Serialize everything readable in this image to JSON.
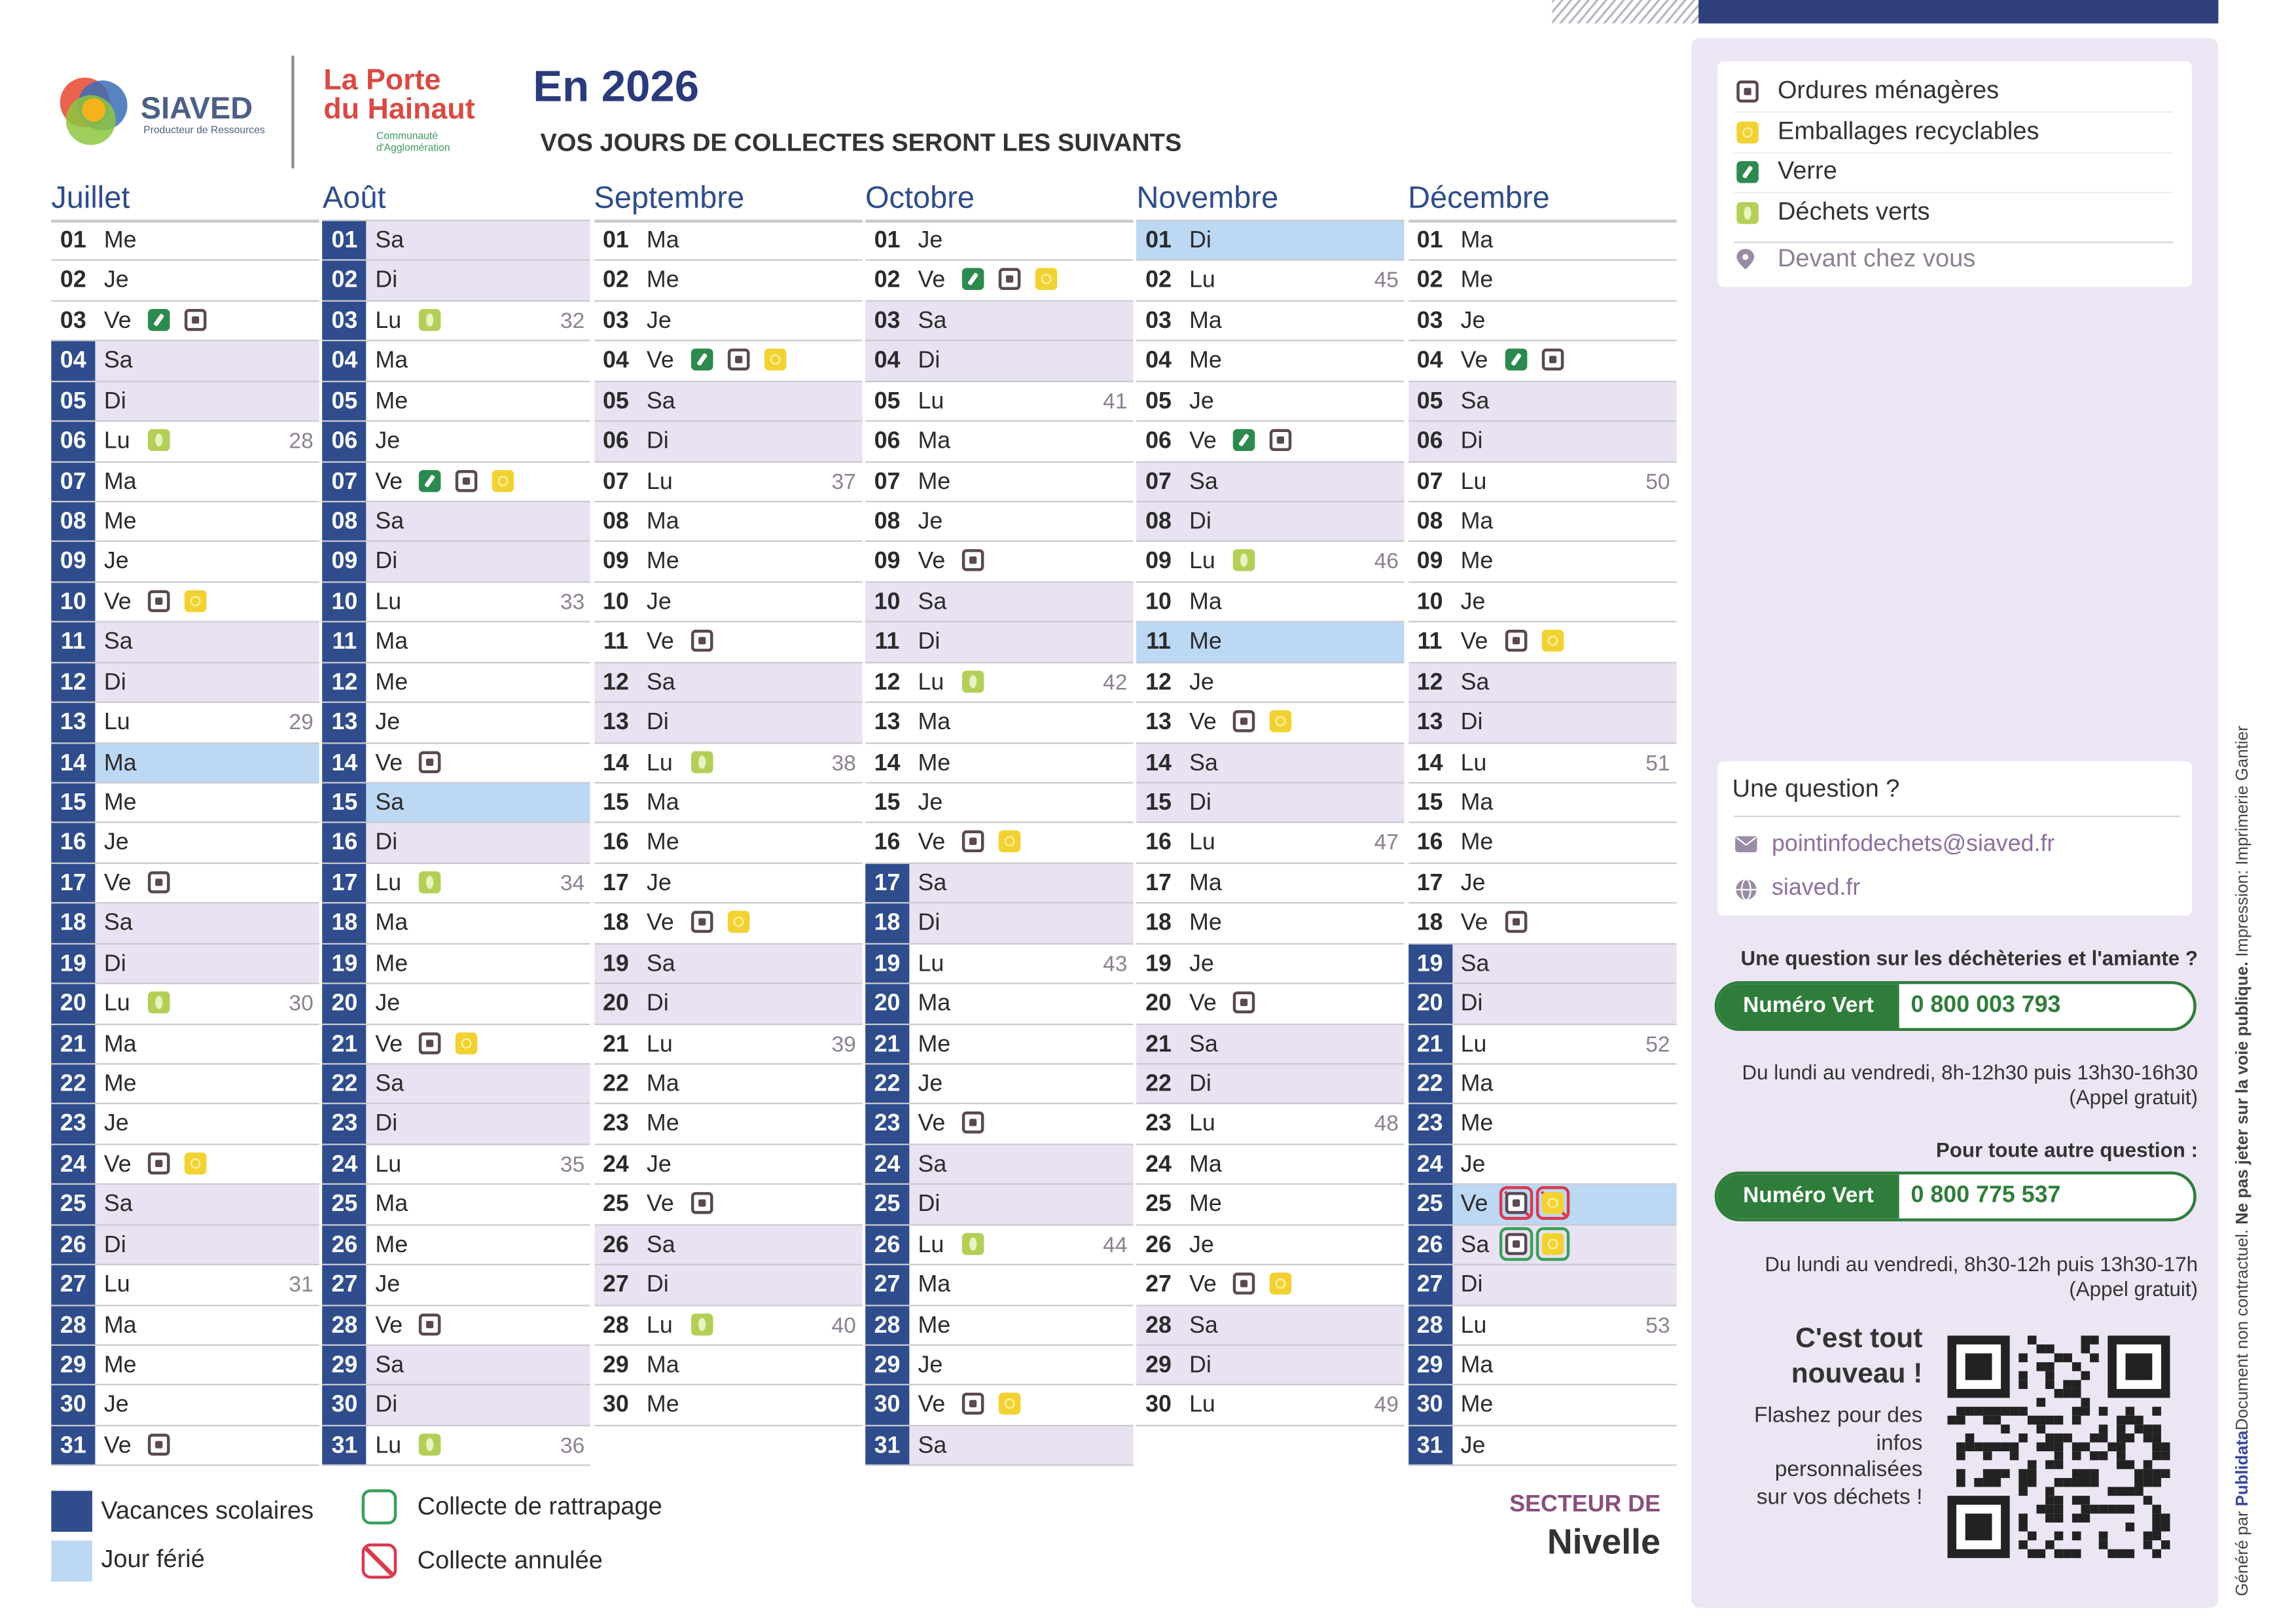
{
  "header": {
    "logo_siaved": "SIAVED",
    "logo_siaved_tagline": "Producteur de Ressources",
    "logo_porte_1": "La Porte",
    "logo_porte_2": "du Hainaut",
    "logo_porte_tagline": "Communauté d'Agglomération",
    "year_title": "En 2026",
    "subtitle": "VOS JOURS DE COLLECTES SERONT LES SUIVANTS"
  },
  "months": [
    {
      "name": "Juillet",
      "days": [
        {
          "d": "01",
          "w": "Me"
        },
        {
          "d": "02",
          "w": "Je"
        },
        {
          "d": "03",
          "w": "Ve",
          "i": [
            "v",
            "o"
          ]
        },
        {
          "d": "04",
          "w": "Sa",
          "s": "w",
          "v": true
        },
        {
          "d": "05",
          "w": "Di",
          "s": "w",
          "v": true
        },
        {
          "d": "06",
          "w": "Lu",
          "i": [
            "g"
          ],
          "n": 28,
          "v": true
        },
        {
          "d": "07",
          "w": "Ma",
          "v": true
        },
        {
          "d": "08",
          "w": "Me",
          "v": true
        },
        {
          "d": "09",
          "w": "Je",
          "v": true
        },
        {
          "d": "10",
          "w": "Ve",
          "i": [
            "o",
            "e"
          ],
          "v": true
        },
        {
          "d": "11",
          "w": "Sa",
          "s": "w",
          "v": true
        },
        {
          "d": "12",
          "w": "Di",
          "s": "w",
          "v": true
        },
        {
          "d": "13",
          "w": "Lu",
          "n": 29,
          "v": true
        },
        {
          "d": "14",
          "w": "Ma",
          "s": "h",
          "v": true
        },
        {
          "d": "15",
          "w": "Me",
          "v": true
        },
        {
          "d": "16",
          "w": "Je",
          "v": true
        },
        {
          "d": "17",
          "w": "Ve",
          "i": [
            "o"
          ],
          "v": true
        },
        {
          "d": "18",
          "w": "Sa",
          "s": "w",
          "v": true
        },
        {
          "d": "19",
          "w": "Di",
          "s": "w",
          "v": true
        },
        {
          "d": "20",
          "w": "Lu",
          "i": [
            "g"
          ],
          "n": 30,
          "v": true
        },
        {
          "d": "21",
          "w": "Ma",
          "v": true
        },
        {
          "d": "22",
          "w": "Me",
          "v": true
        },
        {
          "d": "23",
          "w": "Je",
          "v": true
        },
        {
          "d": "24",
          "w": "Ve",
          "i": [
            "o",
            "e"
          ],
          "v": true
        },
        {
          "d": "25",
          "w": "Sa",
          "s": "w",
          "v": true
        },
        {
          "d": "26",
          "w": "Di",
          "s": "w",
          "v": true
        },
        {
          "d": "27",
          "w": "Lu",
          "n": 31,
          "v": true
        },
        {
          "d": "28",
          "w": "Ma",
          "v": true
        },
        {
          "d": "29",
          "w": "Me",
          "v": true
        },
        {
          "d": "30",
          "w": "Je",
          "v": true
        },
        {
          "d": "31",
          "w": "Ve",
          "i": [
            "o"
          ],
          "v": true
        }
      ]
    },
    {
      "name": "Août",
      "days": [
        {
          "d": "01",
          "w": "Sa",
          "s": "w",
          "v": true
        },
        {
          "d": "02",
          "w": "Di",
          "s": "w",
          "v": true
        },
        {
          "d": "03",
          "w": "Lu",
          "i": [
            "g"
          ],
          "n": 32,
          "v": true
        },
        {
          "d": "04",
          "w": "Ma",
          "v": true
        },
        {
          "d": "05",
          "w": "Me",
          "v": true
        },
        {
          "d": "06",
          "w": "Je",
          "v": true
        },
        {
          "d": "07",
          "w": "Ve",
          "i": [
            "v",
            "o",
            "e"
          ],
          "v": true
        },
        {
          "d": "08",
          "w": "Sa",
          "s": "w",
          "v": true
        },
        {
          "d": "09",
          "w": "Di",
          "s": "w",
          "v": true
        },
        {
          "d": "10",
          "w": "Lu",
          "n": 33,
          "v": true
        },
        {
          "d": "11",
          "w": "Ma",
          "v": true
        },
        {
          "d": "12",
          "w": "Me",
          "v": true
        },
        {
          "d": "13",
          "w": "Je",
          "v": true
        },
        {
          "d": "14",
          "w": "Ve",
          "i": [
            "o"
          ],
          "v": true
        },
        {
          "d": "15",
          "w": "Sa",
          "s": "h",
          "v": true
        },
        {
          "d": "16",
          "w": "Di",
          "s": "w",
          "v": true
        },
        {
          "d": "17",
          "w": "Lu",
          "i": [
            "g"
          ],
          "n": 34,
          "v": true
        },
        {
          "d": "18",
          "w": "Ma",
          "v": true
        },
        {
          "d": "19",
          "w": "Me",
          "v": true
        },
        {
          "d": "20",
          "w": "Je",
          "v": true
        },
        {
          "d": "21",
          "w": "Ve",
          "i": [
            "o",
            "e"
          ],
          "v": true
        },
        {
          "d": "22",
          "w": "Sa",
          "s": "w",
          "v": true
        },
        {
          "d": "23",
          "w": "Di",
          "s": "w",
          "v": true
        },
        {
          "d": "24",
          "w": "Lu",
          "n": 35,
          "v": true
        },
        {
          "d": "25",
          "w": "Ma",
          "v": true
        },
        {
          "d": "26",
          "w": "Me",
          "v": true
        },
        {
          "d": "27",
          "w": "Je",
          "v": true
        },
        {
          "d": "28",
          "w": "Ve",
          "i": [
            "o"
          ],
          "v": true
        },
        {
          "d": "29",
          "w": "Sa",
          "s": "w",
          "v": true
        },
        {
          "d": "30",
          "w": "Di",
          "s": "w",
          "v": true
        },
        {
          "d": "31",
          "w": "Lu",
          "i": [
            "g"
          ],
          "n": 36,
          "v": true
        }
      ]
    },
    {
      "name": "Septembre",
      "days": [
        {
          "d": "01",
          "w": "Ma"
        },
        {
          "d": "02",
          "w": "Me"
        },
        {
          "d": "03",
          "w": "Je"
        },
        {
          "d": "04",
          "w": "Ve",
          "i": [
            "v",
            "o",
            "e"
          ]
        },
        {
          "d": "05",
          "w": "Sa",
          "s": "w"
        },
        {
          "d": "06",
          "w": "Di",
          "s": "w"
        },
        {
          "d": "07",
          "w": "Lu",
          "n": 37
        },
        {
          "d": "08",
          "w": "Ma"
        },
        {
          "d": "09",
          "w": "Me"
        },
        {
          "d": "10",
          "w": "Je"
        },
        {
          "d": "11",
          "w": "Ve",
          "i": [
            "o"
          ]
        },
        {
          "d": "12",
          "w": "Sa",
          "s": "w"
        },
        {
          "d": "13",
          "w": "Di",
          "s": "w"
        },
        {
          "d": "14",
          "w": "Lu",
          "i": [
            "g"
          ],
          "n": 38
        },
        {
          "d": "15",
          "w": "Ma"
        },
        {
          "d": "16",
          "w": "Me"
        },
        {
          "d": "17",
          "w": "Je"
        },
        {
          "d": "18",
          "w": "Ve",
          "i": [
            "o",
            "e"
          ]
        },
        {
          "d": "19",
          "w": "Sa",
          "s": "w"
        },
        {
          "d": "20",
          "w": "Di",
          "s": "w"
        },
        {
          "d": "21",
          "w": "Lu",
          "n": 39
        },
        {
          "d": "22",
          "w": "Ma"
        },
        {
          "d": "23",
          "w": "Me"
        },
        {
          "d": "24",
          "w": "Je"
        },
        {
          "d": "25",
          "w": "Ve",
          "i": [
            "o"
          ]
        },
        {
          "d": "26",
          "w": "Sa",
          "s": "w"
        },
        {
          "d": "27",
          "w": "Di",
          "s": "w"
        },
        {
          "d": "28",
          "w": "Lu",
          "i": [
            "g"
          ],
          "n": 40
        },
        {
          "d": "29",
          "w": "Ma"
        },
        {
          "d": "30",
          "w": "Me"
        }
      ]
    },
    {
      "name": "Octobre",
      "days": [
        {
          "d": "01",
          "w": "Je"
        },
        {
          "d": "02",
          "w": "Ve",
          "i": [
            "v",
            "o",
            "e"
          ]
        },
        {
          "d": "03",
          "w": "Sa",
          "s": "w"
        },
        {
          "d": "04",
          "w": "Di",
          "s": "w"
        },
        {
          "d": "05",
          "w": "Lu",
          "n": 41
        },
        {
          "d": "06",
          "w": "Ma"
        },
        {
          "d": "07",
          "w": "Me"
        },
        {
          "d": "08",
          "w": "Je"
        },
        {
          "d": "09",
          "w": "Ve",
          "i": [
            "o"
          ]
        },
        {
          "d": "10",
          "w": "Sa",
          "s": "w"
        },
        {
          "d": "11",
          "w": "Di",
          "s": "w"
        },
        {
          "d": "12",
          "w": "Lu",
          "i": [
            "g"
          ],
          "n": 42
        },
        {
          "d": "13",
          "w": "Ma"
        },
        {
          "d": "14",
          "w": "Me"
        },
        {
          "d": "15",
          "w": "Je"
        },
        {
          "d": "16",
          "w": "Ve",
          "i": [
            "o",
            "e"
          ]
        },
        {
          "d": "17",
          "w": "Sa",
          "s": "w",
          "v": true
        },
        {
          "d": "18",
          "w": "Di",
          "s": "w",
          "v": true
        },
        {
          "d": "19",
          "w": "Lu",
          "n": 43,
          "v": true
        },
        {
          "d": "20",
          "w": "Ma",
          "v": true
        },
        {
          "d": "21",
          "w": "Me",
          "v": true
        },
        {
          "d": "22",
          "w": "Je",
          "v": true
        },
        {
          "d": "23",
          "w": "Ve",
          "i": [
            "o"
          ],
          "v": true
        },
        {
          "d": "24",
          "w": "Sa",
          "s": "w",
          "v": true
        },
        {
          "d": "25",
          "w": "Di",
          "s": "w",
          "v": true
        },
        {
          "d": "26",
          "w": "Lu",
          "i": [
            "g"
          ],
          "n": 44,
          "v": true
        },
        {
          "d": "27",
          "w": "Ma",
          "v": true
        },
        {
          "d": "28",
          "w": "Me",
          "v": true
        },
        {
          "d": "29",
          "w": "Je",
          "v": true
        },
        {
          "d": "30",
          "w": "Ve",
          "i": [
            "o",
            "e"
          ],
          "v": true
        },
        {
          "d": "31",
          "w": "Sa",
          "s": "w",
          "v": true
        }
      ]
    },
    {
      "name": "Novembre",
      "days": [
        {
          "d": "01",
          "w": "Di",
          "s": "h"
        },
        {
          "d": "02",
          "w": "Lu",
          "n": 45
        },
        {
          "d": "03",
          "w": "Ma"
        },
        {
          "d": "04",
          "w": "Me"
        },
        {
          "d": "05",
          "w": "Je"
        },
        {
          "d": "06",
          "w": "Ve",
          "i": [
            "v",
            "o"
          ]
        },
        {
          "d": "07",
          "w": "Sa",
          "s": "w"
        },
        {
          "d": "08",
          "w": "Di",
          "s": "w"
        },
        {
          "d": "09",
          "w": "Lu",
          "i": [
            "g"
          ],
          "n": 46
        },
        {
          "d": "10",
          "w": "Ma"
        },
        {
          "d": "11",
          "w": "Me",
          "s": "h"
        },
        {
          "d": "12",
          "w": "Je"
        },
        {
          "d": "13",
          "w": "Ve",
          "i": [
            "o",
            "e"
          ]
        },
        {
          "d": "14",
          "w": "Sa",
          "s": "w"
        },
        {
          "d": "15",
          "w": "Di",
          "s": "w"
        },
        {
          "d": "16",
          "w": "Lu",
          "n": 47
        },
        {
          "d": "17",
          "w": "Ma"
        },
        {
          "d": "18",
          "w": "Me"
        },
        {
          "d": "19",
          "w": "Je"
        },
        {
          "d": "20",
          "w": "Ve",
          "i": [
            "o"
          ]
        },
        {
          "d": "21",
          "w": "Sa",
          "s": "w"
        },
        {
          "d": "22",
          "w": "Di",
          "s": "w"
        },
        {
          "d": "23",
          "w": "Lu",
          "n": 48
        },
        {
          "d": "24",
          "w": "Ma"
        },
        {
          "d": "25",
          "w": "Me"
        },
        {
          "d": "26",
          "w": "Je"
        },
        {
          "d": "27",
          "w": "Ve",
          "i": [
            "o",
            "e"
          ]
        },
        {
          "d": "28",
          "w": "Sa",
          "s": "w"
        },
        {
          "d": "29",
          "w": "Di",
          "s": "w"
        },
        {
          "d": "30",
          "w": "Lu",
          "n": 49
        }
      ]
    },
    {
      "name": "Décembre",
      "days": [
        {
          "d": "01",
          "w": "Ma"
        },
        {
          "d": "02",
          "w": "Me"
        },
        {
          "d": "03",
          "w": "Je"
        },
        {
          "d": "04",
          "w": "Ve",
          "i": [
            "v",
            "o"
          ]
        },
        {
          "d": "05",
          "w": "Sa",
          "s": "w"
        },
        {
          "d": "06",
          "w": "Di",
          "s": "w"
        },
        {
          "d": "07",
          "w": "Lu",
          "n": 50
        },
        {
          "d": "08",
          "w": "Ma"
        },
        {
          "d": "09",
          "w": "Me"
        },
        {
          "d": "10",
          "w": "Je"
        },
        {
          "d": "11",
          "w": "Ve",
          "i": [
            "o",
            "e"
          ]
        },
        {
          "d": "12",
          "w": "Sa",
          "s": "w"
        },
        {
          "d": "13",
          "w": "Di",
          "s": "w"
        },
        {
          "d": "14",
          "w": "Lu",
          "n": 51
        },
        {
          "d": "15",
          "w": "Ma"
        },
        {
          "d": "16",
          "w": "Me"
        },
        {
          "d": "17",
          "w": "Je"
        },
        {
          "d": "18",
          "w": "Ve",
          "i": [
            "o"
          ]
        },
        {
          "d": "19",
          "w": "Sa",
          "s": "w",
          "v": true
        },
        {
          "d": "20",
          "w": "Di",
          "s": "w",
          "v": true
        },
        {
          "d": "21",
          "w": "Lu",
          "n": 52,
          "v": true
        },
        {
          "d": "22",
          "w": "Ma",
          "v": true
        },
        {
          "d": "23",
          "w": "Me",
          "v": true
        },
        {
          "d": "24",
          "w": "Je",
          "v": true
        },
        {
          "d": "25",
          "w": "Ve",
          "i": [
            "ox",
            "ex"
          ],
          "s": "h",
          "v": true
        },
        {
          "d": "26",
          "w": "Sa",
          "i": [
            "or",
            "er"
          ],
          "s": "w",
          "v": true
        },
        {
          "d": "27",
          "w": "Di",
          "s": "w",
          "v": true
        },
        {
          "d": "28",
          "w": "Lu",
          "n": 53,
          "v": true
        },
        {
          "d": "29",
          "w": "Ma",
          "v": true
        },
        {
          "d": "30",
          "w": "Me",
          "v": true
        },
        {
          "d": "31",
          "w": "Je",
          "v": true
        }
      ]
    }
  ],
  "legend": {
    "items": [
      {
        "label": "Ordures ménagères",
        "icon": "o"
      },
      {
        "label": "Emballages recyclables",
        "icon": "e"
      },
      {
        "label": "Verre",
        "icon": "v"
      },
      {
        "label": "Déchets verts",
        "icon": "g"
      }
    ],
    "place": "Devant chez vous"
  },
  "contact": {
    "question": "Une question ?",
    "email": "pointinfodechets@siaved.fr",
    "site": "siaved.fr",
    "line1": {
      "title": "Une question sur les déchèteries et l'amiante ?",
      "label": "Numéro Vert",
      "number": "0 800 003 793",
      "hours": "Du lundi au vendredi, 8h-12h30 puis 13h30-16h30",
      "note": "(Appel gratuit)"
    },
    "line2": {
      "title": "Pour toute autre question :",
      "label": "Numéro Vert",
      "number": "0 800 775 537",
      "hours": "Du lundi au vendredi, 8h30-12h puis 13h30-17h",
      "note": "(Appel gratuit)"
    },
    "qr_title_1": "C'est tout",
    "qr_title_2": "nouveau !",
    "qr_text": [
      "Flashez pour des",
      "infos",
      "personnalisées",
      "sur vos déchets !"
    ]
  },
  "key": {
    "vacation": "Vacances scolaires",
    "holiday": "Jour férié",
    "catchup": "Collecte de rattrapage",
    "cancelled": "Collecte annulée"
  },
  "sector": {
    "label": "SECTEUR DE",
    "name": "Nivelle"
  },
  "side_note": {
    "generated": "Généré par",
    "brand": "Publidata",
    "disclaimer": "Document non contractuel.",
    "warning": "Ne pas jeter sur la voie publique.",
    "print": "Impression:",
    "printer": "Imprimerie Gantier"
  }
}
